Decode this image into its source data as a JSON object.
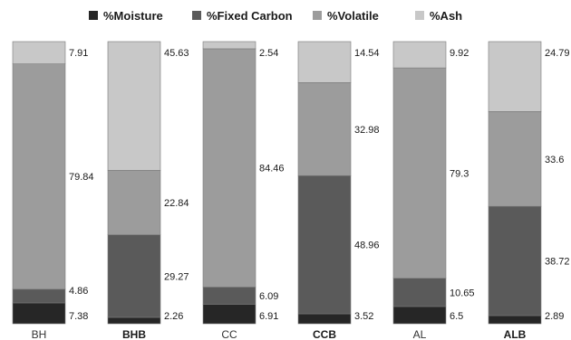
{
  "chart_data": {
    "type": "bar",
    "stacked": "percent",
    "legend_position": "top",
    "grid": false,
    "categories": [
      "BH",
      "BHB",
      "CC",
      "CCB",
      "AL",
      "ALB"
    ],
    "bold_categories": [
      false,
      true,
      false,
      true,
      false,
      true
    ],
    "series": [
      {
        "name": "%Moisture",
        "color": "#262626",
        "values": [
          7.38,
          2.26,
          6.91,
          3.52,
          6.5,
          2.89
        ]
      },
      {
        "name": "%Fixed Carbon",
        "color": "#5a5a5a",
        "values": [
          4.86,
          29.27,
          6.09,
          48.96,
          10.65,
          38.72
        ]
      },
      {
        "name": "%Volatile",
        "color": "#9c9c9c",
        "values": [
          79.84,
          22.84,
          84.46,
          32.98,
          79.3,
          33.6
        ]
      },
      {
        "name": "%Ash",
        "color": "#c8c8c8",
        "values": [
          7.91,
          45.63,
          2.54,
          14.54,
          9.92,
          24.79
        ]
      }
    ],
    "data_labels": [
      [
        "7.38",
        "4.86",
        "79.84",
        "7.91"
      ],
      [
        "2.26",
        "29.27",
        "22.84",
        "45.63"
      ],
      [
        "6.91",
        "6.09",
        "84.46",
        "2.54"
      ],
      [
        "3.52",
        "48.96",
        "32.98",
        "14.54"
      ],
      [
        "6.5",
        "10.65",
        "79.3",
        "9.92"
      ],
      [
        "2.89",
        "38.72",
        "33.6",
        "24.79"
      ]
    ]
  }
}
